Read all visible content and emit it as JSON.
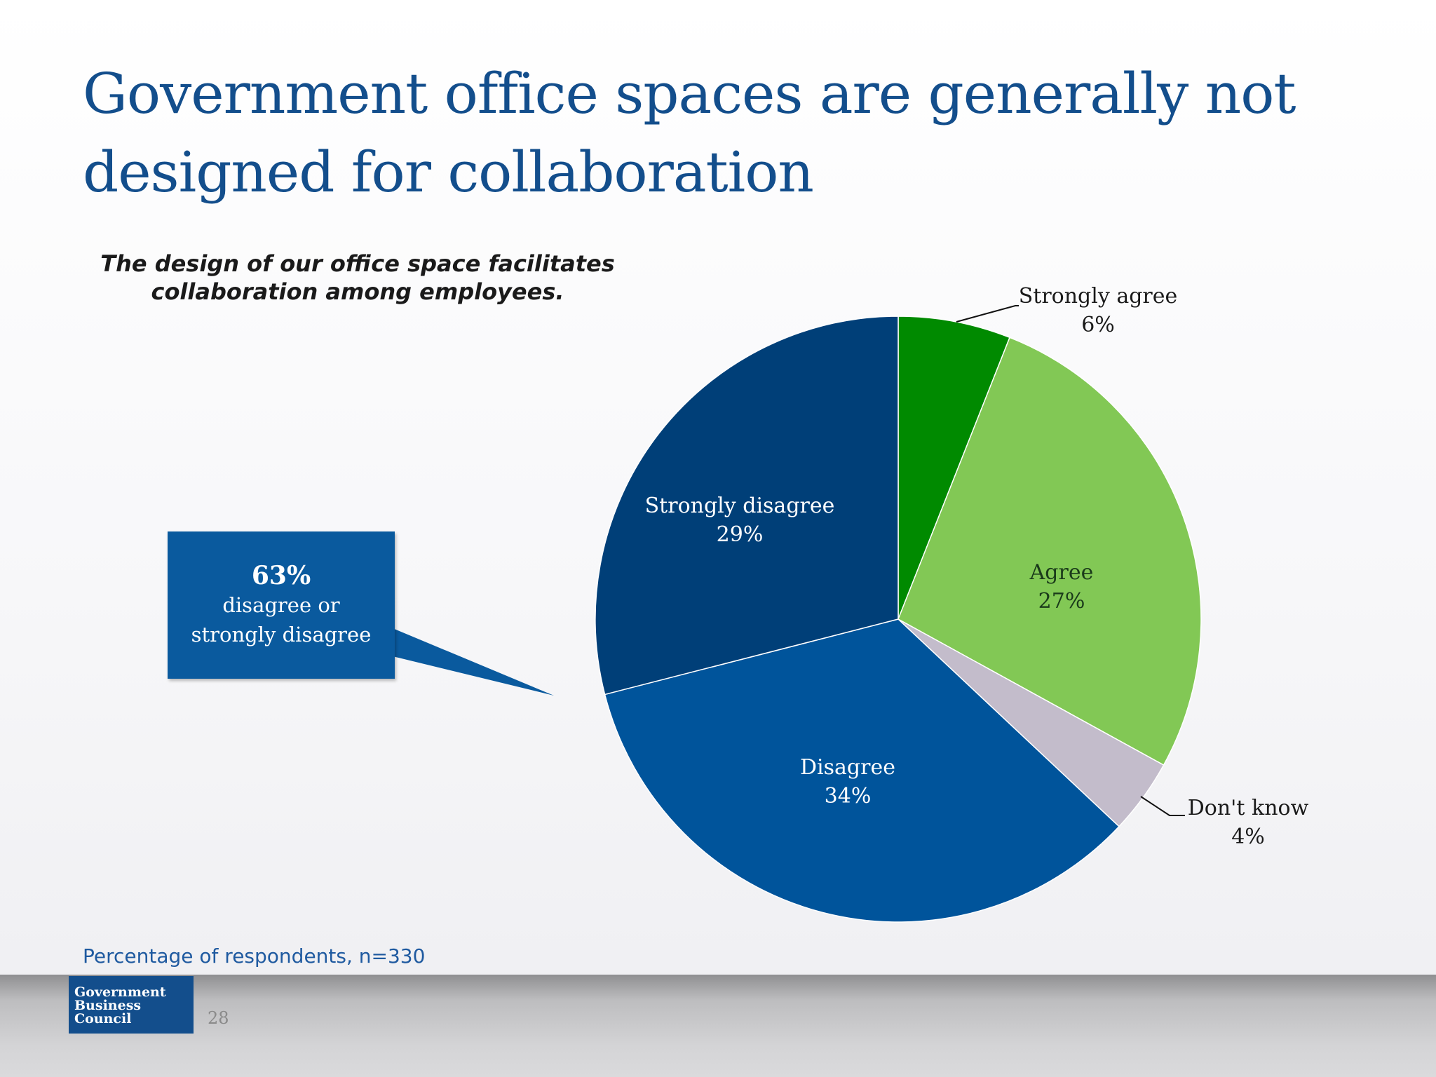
{
  "slide": {
    "title": "Government office spaces are generally not designed for collaboration",
    "question": "The design of our office space facilitates collaboration among employees.",
    "footnote": "Percentage of respondents, n=330",
    "page_number": "28",
    "logo_lines": [
      "Government",
      "Business",
      "Council"
    ]
  },
  "callout": {
    "percent": "63%",
    "line1": "disagree or",
    "line2": "strongly disagree"
  },
  "chart_data": {
    "type": "pie",
    "start_angle_deg": 0,
    "direction": "clockwise",
    "slices": [
      {
        "label": "Strongly agree",
        "value": 6,
        "value_label": "6%",
        "color": "#008a00",
        "label_placement": "outside"
      },
      {
        "label": "Agree",
        "value": 27,
        "value_label": "27%",
        "color": "#82c855",
        "label_placement": "inside"
      },
      {
        "label": "Don't know",
        "value": 4,
        "value_label": "4%",
        "color": "#c3bccb",
        "label_placement": "outside"
      },
      {
        "label": "Disagree",
        "value": 34,
        "value_label": "34%",
        "color": "#00549b",
        "label_placement": "inside"
      },
      {
        "label": "Strongly disagree",
        "value": 29,
        "value_label": "29%",
        "color": "#003f78",
        "label_placement": "inside"
      }
    ]
  },
  "colors": {
    "title": "#134e8c",
    "callout_bg": "#0a5a9e",
    "footnote": "#1f5aa0"
  }
}
